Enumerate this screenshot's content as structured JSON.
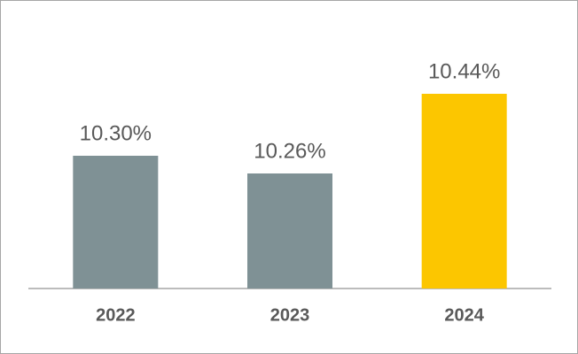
{
  "chart_data": {
    "type": "bar",
    "categories": [
      "2022",
      "2023",
      "2024"
    ],
    "values": [
      10.3,
      10.26,
      10.44
    ],
    "value_labels": [
      "10.30%",
      "10.26%",
      "10.44%"
    ],
    "colors": [
      "#7f9195",
      "#7f9195",
      "#fcc600"
    ],
    "ylim": [
      10,
      10.6
    ]
  }
}
